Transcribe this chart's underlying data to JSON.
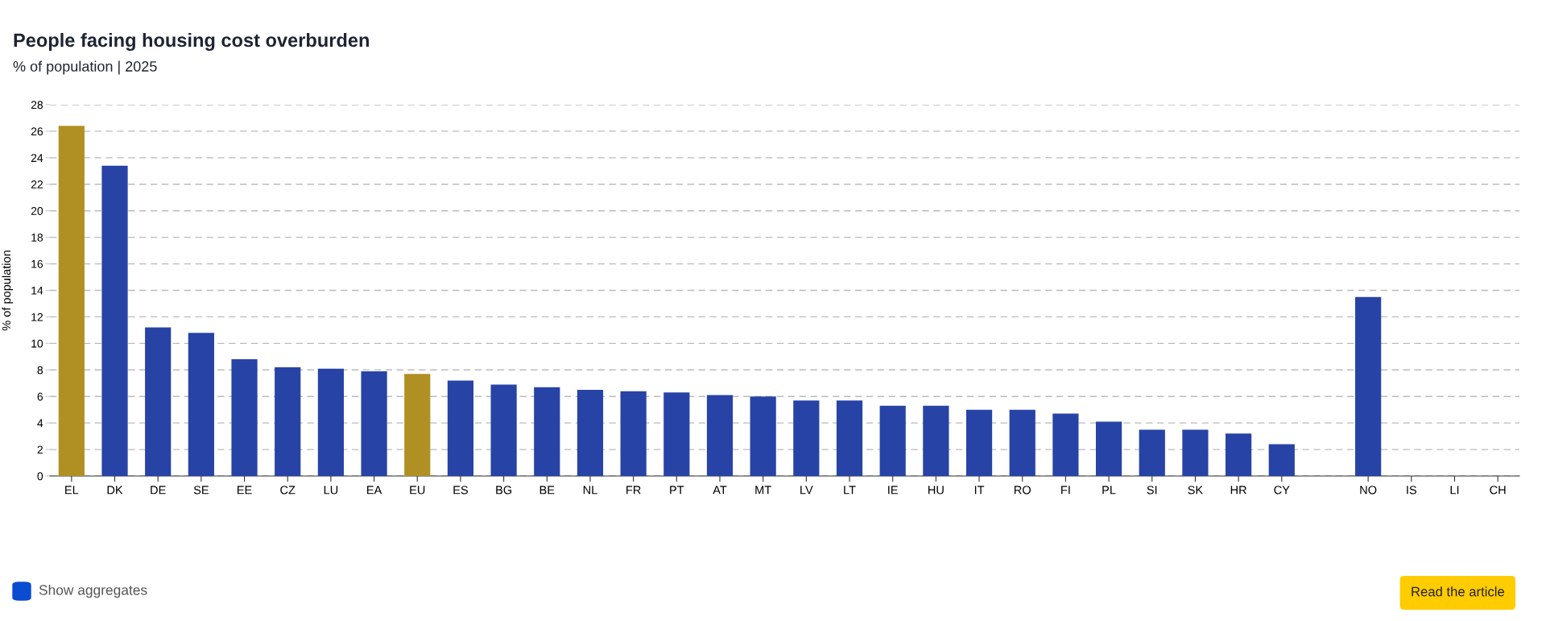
{
  "chart_data": {
    "type": "bar",
    "title": "People facing housing cost overburden",
    "subtitle": "% of population | 2025",
    "ylabel": "% of population",
    "categories": [
      "EL",
      "DK",
      "DE",
      "SE",
      "EE",
      "CZ",
      "LU",
      "EA",
      "EU",
      "ES",
      "BG",
      "BE",
      "NL",
      "FR",
      "PT",
      "AT",
      "MT",
      "LV",
      "LT",
      "IE",
      "HU",
      "IT",
      "RO",
      "FI",
      "PL",
      "SI",
      "SK",
      "HR",
      "CY",
      null,
      "NO",
      "IS",
      "LI",
      "CH"
    ],
    "values": [
      26.4,
      23.4,
      11.2,
      10.8,
      8.8,
      8.2,
      8.1,
      7.9,
      7.7,
      7.2,
      6.9,
      6.7,
      6.5,
      6.4,
      6.3,
      6.1,
      6.0,
      5.7,
      5.7,
      5.3,
      5.3,
      5.0,
      5.0,
      4.7,
      4.1,
      3.5,
      3.5,
      3.2,
      2.4,
      null,
      13.5,
      null,
      null,
      null
    ],
    "colors": [
      "#b09022",
      "#2743a6",
      "#2743a6",
      "#2743a6",
      "#2743a6",
      "#2743a6",
      "#2743a6",
      "#2743a6",
      "#b09022",
      "#2743a6",
      "#2743a6",
      "#2743a6",
      "#2743a6",
      "#2743a6",
      "#2743a6",
      "#2743a6",
      "#2743a6",
      "#2743a6",
      "#2743a6",
      "#2743a6",
      "#2743a6",
      "#2743a6",
      "#2743a6",
      "#2743a6",
      "#2743a6",
      "#2743a6",
      "#2743a6",
      "#2743a6",
      "#2743a6",
      "#2743a6",
      "#2743a6",
      "#2743a6",
      "#2743a6",
      "#2743a6"
    ],
    "ylim": [
      0,
      28
    ],
    "yticks": [
      0,
      2,
      4,
      6,
      8,
      10,
      12,
      14,
      16,
      18,
      20,
      22,
      24,
      26,
      28
    ],
    "grid": "y",
    "annotations": [
      "Show aggregates",
      "Read the article"
    ]
  }
}
